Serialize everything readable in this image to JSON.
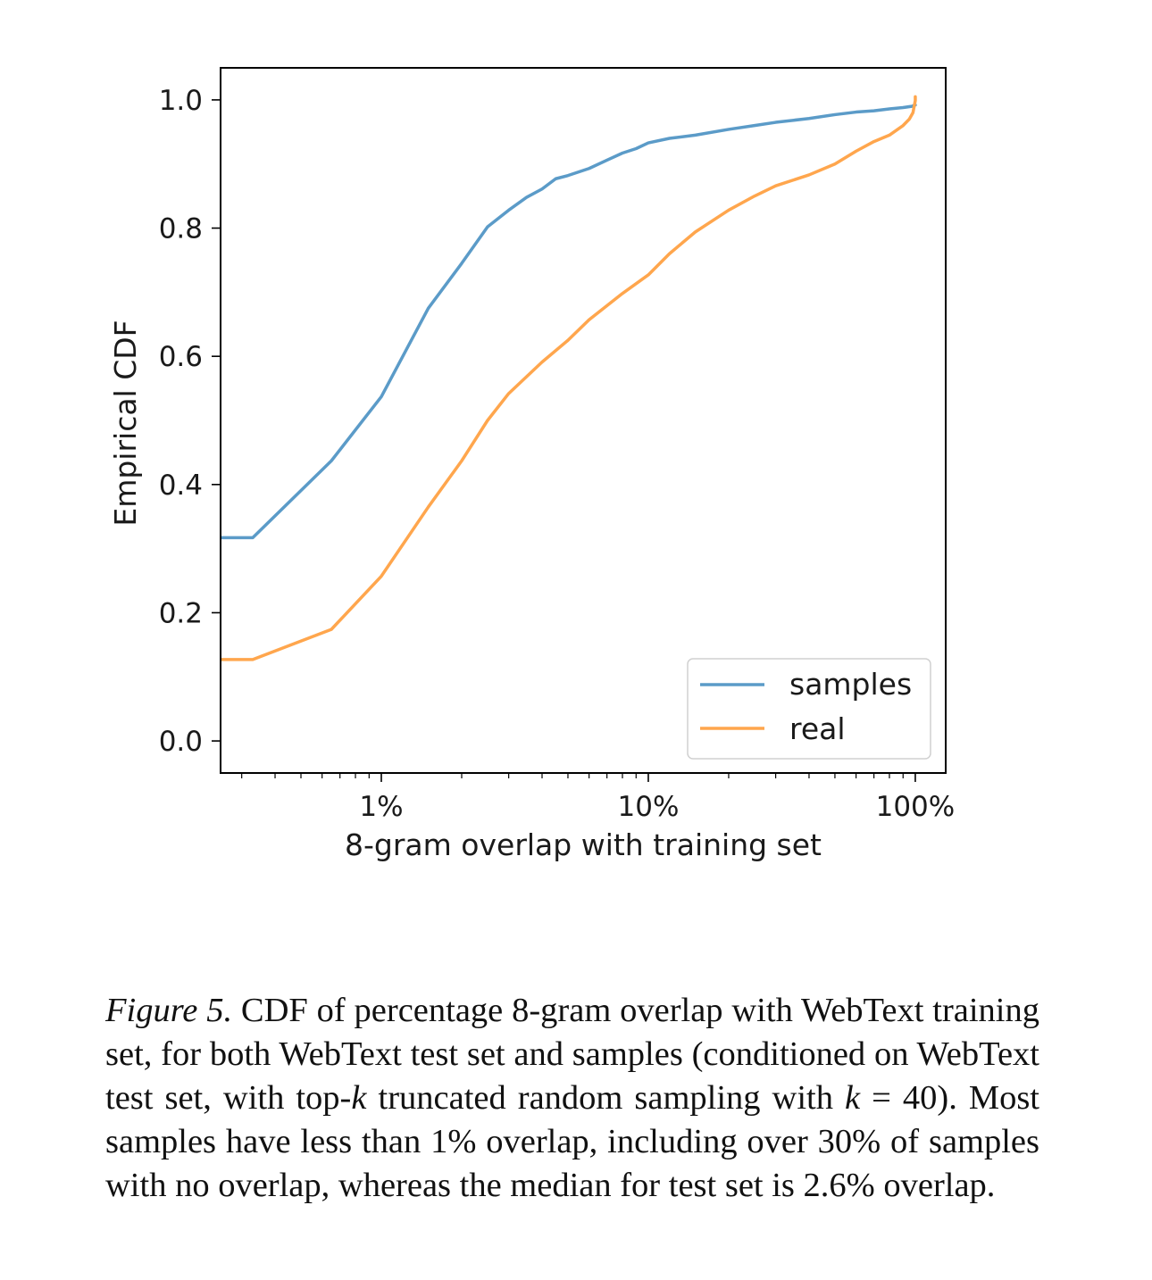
{
  "chart_data": {
    "type": "line",
    "xlabel": "8-gram overlap with training set",
    "ylabel": "Empirical CDF",
    "x_scale": "log",
    "x_unit": "percent",
    "xlim": [
      0.25,
      130
    ],
    "ylim": [
      -0.05,
      1.05
    ],
    "x_ticks": [
      {
        "value": 1,
        "label": "1%"
      },
      {
        "value": 10,
        "label": "10%"
      },
      {
        "value": 100,
        "label": "100%"
      }
    ],
    "y_ticks": [
      {
        "value": 0.0,
        "label": "0.0"
      },
      {
        "value": 0.2,
        "label": "0.2"
      },
      {
        "value": 0.4,
        "label": "0.4"
      },
      {
        "value": 0.6,
        "label": "0.6"
      },
      {
        "value": 0.8,
        "label": "0.8"
      },
      {
        "value": 1.0,
        "label": "1.0"
      }
    ],
    "grid": false,
    "legend_position": "lower right",
    "series": [
      {
        "name": "samples",
        "color": "#5b9bc8",
        "x": [
          0.25,
          0.33,
          0.65,
          1.0,
          1.5,
          2.0,
          2.5,
          3.0,
          3.5,
          4.0,
          4.5,
          5.0,
          6.0,
          7.0,
          8.0,
          9.0,
          10.0,
          12.0,
          15.0,
          20.0,
          25.0,
          30.0,
          40.0,
          50.0,
          60.0,
          70.0,
          80.0,
          90.0,
          97.0,
          100.0
        ],
        "y": [
          0.317,
          0.317,
          0.437,
          0.537,
          0.675,
          0.745,
          0.802,
          0.828,
          0.848,
          0.861,
          0.877,
          0.882,
          0.893,
          0.906,
          0.917,
          0.924,
          0.933,
          0.94,
          0.945,
          0.954,
          0.96,
          0.965,
          0.971,
          0.977,
          0.981,
          0.983,
          0.986,
          0.988,
          0.99,
          0.992
        ]
      },
      {
        "name": "real",
        "color": "#ffa64d",
        "x": [
          0.25,
          0.33,
          0.65,
          1.0,
          1.5,
          2.0,
          2.5,
          3.0,
          4.0,
          5.0,
          6.0,
          8.0,
          10.0,
          12.0,
          15.0,
          20.0,
          25.0,
          30.0,
          40.0,
          50.0,
          60.0,
          70.0,
          80.0,
          90.0,
          95.0,
          98.0,
          100.0,
          100.0
        ],
        "y": [
          0.127,
          0.127,
          0.174,
          0.257,
          0.365,
          0.437,
          0.5,
          0.542,
          0.591,
          0.625,
          0.657,
          0.698,
          0.727,
          0.76,
          0.794,
          0.828,
          0.85,
          0.866,
          0.883,
          0.9,
          0.92,
          0.935,
          0.945,
          0.96,
          0.97,
          0.98,
          0.999,
          1.005
        ]
      }
    ]
  },
  "caption": {
    "label": "Figure 5.",
    "body_part1": " CDF of percentage 8-gram overlap with WebText training set, for both WebText test set and samples (conditioned on WebText test set, with top-",
    "k1": "k",
    "body_part2": " truncated random sampling with ",
    "k2": "k",
    "body_part3": " = 40). Most samples have less than 1% overlap, including over 30% of samples with no overlap, whereas the median for test set is 2.6% overlap."
  }
}
